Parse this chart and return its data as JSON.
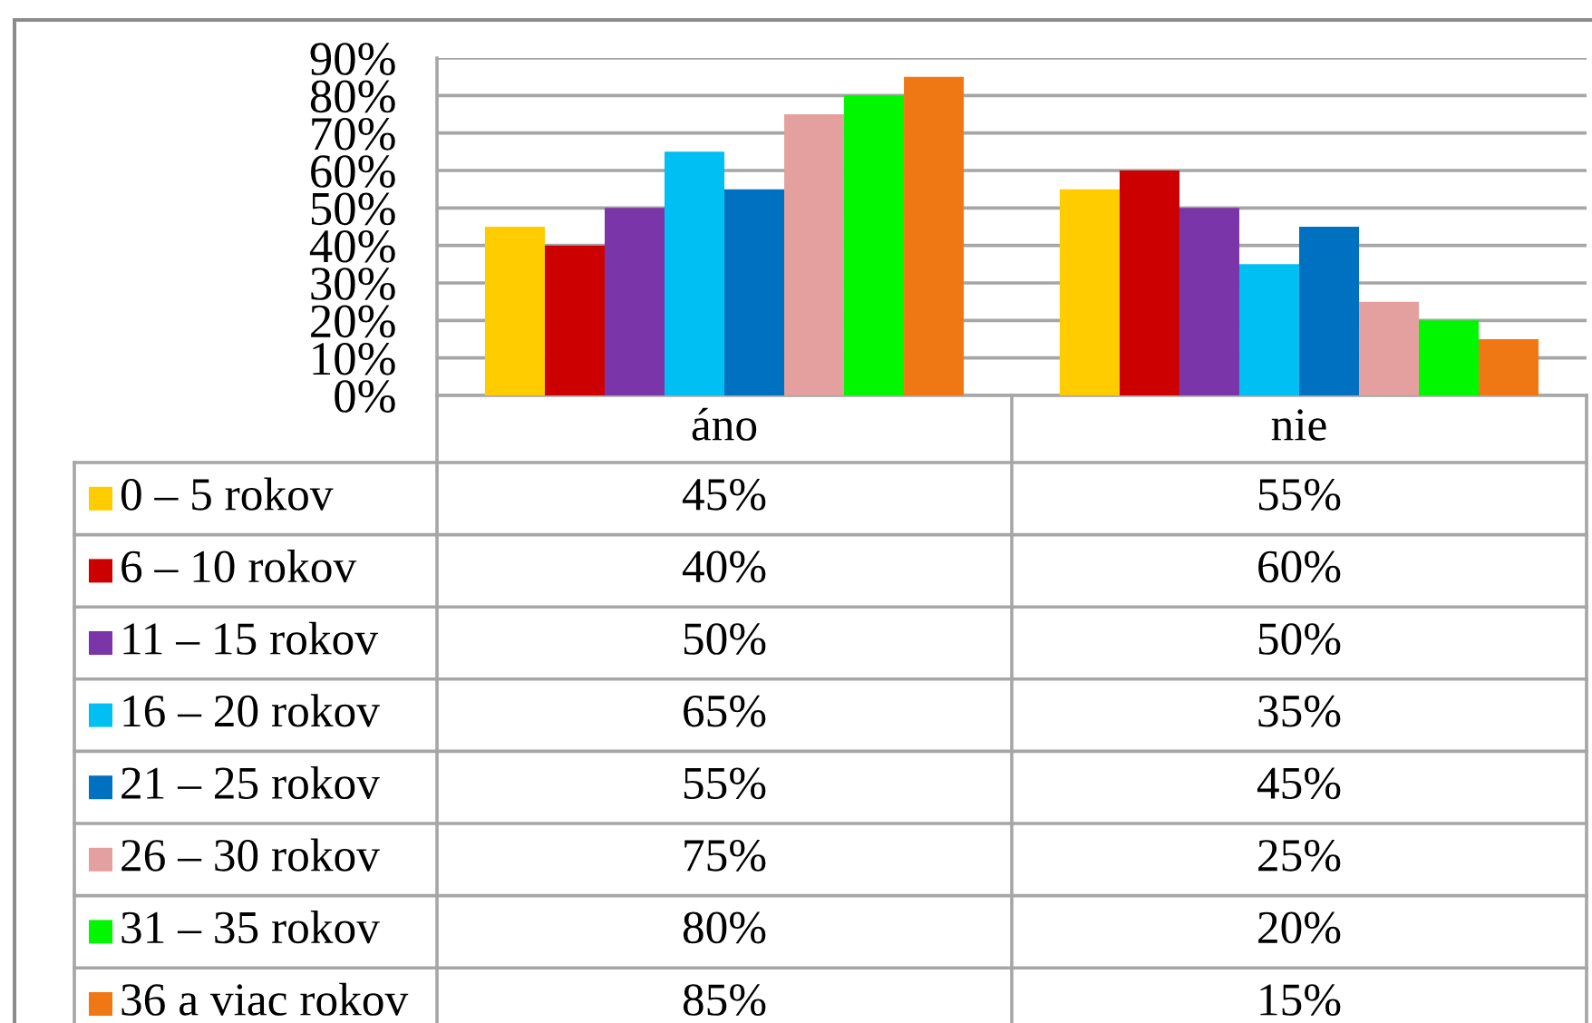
{
  "chart_data": {
    "type": "bar",
    "categories": [
      "áno",
      "nie"
    ],
    "series": [
      {
        "name": "0 – 5 rokov",
        "color": "#ffcc00",
        "values": [
          45,
          55
        ],
        "value_labels": [
          "45%",
          "55%"
        ]
      },
      {
        "name": "6 – 10 rokov",
        "color": "#cc0000",
        "values": [
          40,
          60
        ],
        "value_labels": [
          "40%",
          "60%"
        ]
      },
      {
        "name": "11 – 15 rokov",
        "color": "#7a35a8",
        "values": [
          50,
          50
        ],
        "value_labels": [
          "50%",
          "50%"
        ]
      },
      {
        "name": "16 – 20 rokov",
        "color": "#00bff2",
        "values": [
          65,
          35
        ],
        "value_labels": [
          "65%",
          "35%"
        ]
      },
      {
        "name": "21 – 25 rokov",
        "color": "#0070c0",
        "values": [
          55,
          45
        ],
        "value_labels": [
          "55%",
          "45%"
        ]
      },
      {
        "name": "26 – 30 rokov",
        "color": "#e3a09e",
        "values": [
          75,
          25
        ],
        "value_labels": [
          "75%",
          "25%"
        ]
      },
      {
        "name": "31 – 35 rokov",
        "color": "#00f700",
        "values": [
          80,
          20
        ],
        "value_labels": [
          "80%",
          "20%"
        ]
      },
      {
        "name": "36 a viac rokov",
        "color": "#f07814",
        "values": [
          85,
          15
        ],
        "value_labels": [
          "85%",
          "15%"
        ]
      }
    ],
    "ylim": [
      0,
      90
    ],
    "yticks": [
      {
        "value": 0,
        "label": "0%"
      },
      {
        "value": 10,
        "label": "10%"
      },
      {
        "value": 20,
        "label": "20%"
      },
      {
        "value": 30,
        "label": "30%"
      },
      {
        "value": 40,
        "label": "40%"
      },
      {
        "value": 50,
        "label": "50%"
      },
      {
        "value": 60,
        "label": "60%"
      },
      {
        "value": 70,
        "label": "70%"
      },
      {
        "value": 80,
        "label": "80%"
      },
      {
        "value": 90,
        "label": "90%"
      }
    ],
    "grid": "y",
    "legend": "bottom"
  }
}
